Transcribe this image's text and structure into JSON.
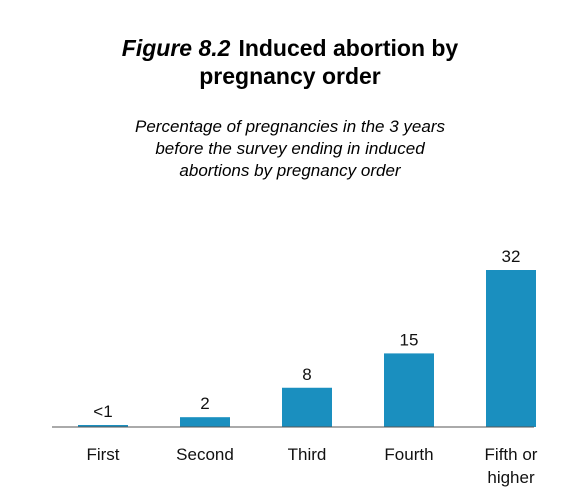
{
  "title": {
    "figure_label": "Figure 8.2",
    "text_line1": "Induced abortion by",
    "text_line2": "pregnancy order"
  },
  "subtitle": {
    "line1": "Percentage of pregnancies in the 3 years",
    "line2": "before the survey ending in induced",
    "line3": "abortions by pregnancy order"
  },
  "chart_data": {
    "type": "bar",
    "categories": [
      [
        "First"
      ],
      [
        "Second"
      ],
      [
        "Third"
      ],
      [
        "Fourth"
      ],
      [
        "Fifth or",
        "higher"
      ]
    ],
    "values": [
      0.4,
      2,
      8,
      15,
      32
    ],
    "data_labels": [
      "<1",
      "2",
      "8",
      "15",
      "32"
    ],
    "ylim": [
      0,
      32
    ],
    "grid": false,
    "legend": "none",
    "bar_color": "#1a8fbf"
  }
}
